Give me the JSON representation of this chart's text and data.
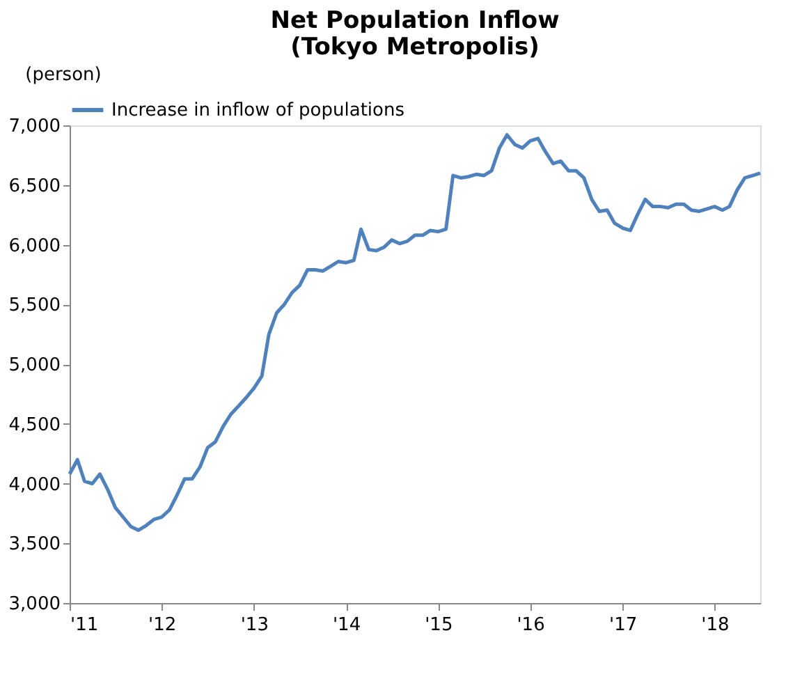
{
  "chart_data": {
    "type": "line",
    "title": "Net Population Inflow\n(Tokyo Metropolis)",
    "ylabel": "(person)",
    "xlim": [
      "2011-01",
      "2018-07"
    ],
    "x": [
      "2011-01",
      "2011-02",
      "2011-03",
      "2011-04",
      "2011-05",
      "2011-06",
      "2011-07",
      "2011-08",
      "2011-09",
      "2011-10",
      "2011-11",
      "2011-12",
      "2012-01",
      "2012-02",
      "2012-03",
      "2012-04",
      "2012-05",
      "2012-06",
      "2012-07",
      "2012-08",
      "2012-09",
      "2012-10",
      "2012-11",
      "2012-12",
      "2013-01",
      "2013-02",
      "2013-03",
      "2013-04",
      "2013-05",
      "2013-06",
      "2013-07",
      "2013-08",
      "2013-09",
      "2013-10",
      "2013-11",
      "2013-12",
      "2014-01",
      "2014-02",
      "2014-03",
      "2014-04",
      "2014-05",
      "2014-06",
      "2014-07",
      "2014-08",
      "2014-09",
      "2014-10",
      "2014-11",
      "2014-12",
      "2015-01",
      "2015-02",
      "2015-03",
      "2015-04",
      "2015-05",
      "2015-06",
      "2015-07",
      "2015-08",
      "2015-09",
      "2015-10",
      "2015-11",
      "2015-12",
      "2016-01",
      "2016-02",
      "2016-03",
      "2016-04",
      "2016-05",
      "2016-06",
      "2016-07",
      "2016-08",
      "2016-09",
      "2016-10",
      "2016-11",
      "2016-12",
      "2017-01",
      "2017-02",
      "2017-03",
      "2017-04",
      "2017-05",
      "2017-06",
      "2017-07",
      "2017-08",
      "2017-09",
      "2017-10",
      "2017-11",
      "2017-12",
      "2018-01",
      "2018-02",
      "2018-03",
      "2018-04",
      "2018-05",
      "2018-06",
      "2018-07"
    ],
    "xticks": [
      {
        "value": "2011-01",
        "label": "'11"
      },
      {
        "value": "2012-01",
        "label": "'12"
      },
      {
        "value": "2013-01",
        "label": "'13"
      },
      {
        "value": "2014-01",
        "label": "'14"
      },
      {
        "value": "2015-01",
        "label": "'15"
      },
      {
        "value": "2016-01",
        "label": "'16"
      },
      {
        "value": "2017-01",
        "label": "'17"
      },
      {
        "value": "2018-01",
        "label": "'18"
      }
    ],
    "ylim": [
      3000,
      7000
    ],
    "yticks": [
      {
        "value": 3000,
        "label": "3,000"
      },
      {
        "value": 3500,
        "label": "3,500"
      },
      {
        "value": 4000,
        "label": "4,000"
      },
      {
        "value": 4500,
        "label": "4,500"
      },
      {
        "value": 5000,
        "label": "5,000"
      },
      {
        "value": 5500,
        "label": "5,500"
      },
      {
        "value": 6000,
        "label": "6,000"
      },
      {
        "value": 6500,
        "label": "6,500"
      },
      {
        "value": 7000,
        "label": "7,000"
      }
    ],
    "grid": false,
    "legend": "top",
    "marker": "none",
    "line_style": "solid",
    "series": [
      {
        "name": "Increase in inflow of populations",
        "color": "#4f81bd",
        "values": [
          4080,
          4200,
          4020,
          4000,
          4080,
          3950,
          3800,
          3720,
          3640,
          3610,
          3650,
          3700,
          3720,
          3780,
          3900,
          4040,
          4040,
          4140,
          4300,
          4350,
          4480,
          4580,
          4650,
          4720,
          4800,
          4900,
          5250,
          5430,
          5500,
          5600,
          5660,
          5790,
          5790,
          5780,
          5820,
          5860,
          5850,
          5870,
          6130,
          5960,
          5950,
          5980,
          6040,
          6010,
          6030,
          6080,
          6080,
          6120,
          6110,
          6130,
          6580,
          6560,
          6570,
          6590,
          6580,
          6620,
          6810,
          6920,
          6840,
          6810,
          6870,
          6890,
          6780,
          6680,
          6700,
          6620,
          6620,
          6560,
          6380,
          6280,
          6290,
          6180,
          6140,
          6120,
          6250,
          6380,
          6320,
          6320,
          6310,
          6340,
          6340,
          6290,
          6280,
          6300,
          6320,
          6290,
          6320,
          6460,
          6560,
          6580,
          6600
        ]
      }
    ]
  }
}
